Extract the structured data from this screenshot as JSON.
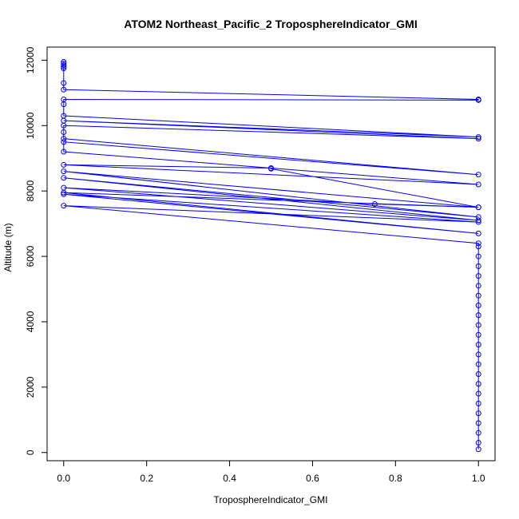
{
  "chart_data": {
    "type": "line",
    "title": "ATOM2 Northeast_Pacific_2 TroposphereIndicator_GMI",
    "xlabel": "TroposphereIndicator_GMI",
    "ylabel": "Altitude (m)",
    "xlim": [
      -0.04,
      1.04
    ],
    "ylim": [
      -250,
      12400
    ],
    "x_ticks": [
      "0.0",
      "0.2",
      "0.4",
      "0.6",
      "0.8",
      "1.0"
    ],
    "y_ticks": [
      "0",
      "2000",
      "4000",
      "6000",
      "8000",
      "10000",
      "12000"
    ],
    "color": "#0000ff",
    "grid": false,
    "series": [
      {
        "points": [
          [
            0,
            11950
          ],
          [
            0,
            11900
          ],
          [
            0,
            11850
          ],
          [
            0,
            11800
          ],
          [
            0,
            11750
          ],
          [
            0,
            11300
          ],
          [
            0,
            11100
          ],
          [
            1,
            10800
          ],
          [
            1,
            10780
          ],
          [
            0,
            10800
          ],
          [
            0,
            10650
          ],
          [
            0,
            10300
          ],
          [
            1,
            9650
          ],
          [
            0,
            10150
          ],
          [
            1,
            9600
          ],
          [
            0,
            10000
          ],
          [
            0,
            9800
          ],
          [
            0,
            9600
          ],
          [
            1,
            8500
          ],
          [
            0,
            9500
          ],
          [
            0,
            9200
          ],
          [
            1,
            8200
          ],
          [
            0,
            8800
          ],
          [
            0.5,
            8700
          ],
          [
            0.5,
            8680
          ],
          [
            1,
            7500
          ],
          [
            0,
            8600
          ],
          [
            1,
            7200
          ],
          [
            0,
            8400
          ],
          [
            1,
            7100
          ],
          [
            0,
            8100
          ],
          [
            0.75,
            7600
          ],
          [
            1,
            7500
          ],
          [
            0,
            7950
          ],
          [
            1,
            6700
          ],
          [
            0,
            7900
          ],
          [
            1,
            7050
          ],
          [
            0,
            7550
          ],
          [
            1,
            6400
          ],
          [
            1,
            6300
          ],
          [
            1,
            6000
          ],
          [
            1,
            5700
          ],
          [
            1,
            5400
          ],
          [
            1,
            5100
          ],
          [
            1,
            4800
          ],
          [
            1,
            4500
          ],
          [
            1,
            4200
          ],
          [
            1,
            3900
          ],
          [
            1,
            3600
          ],
          [
            1,
            3300
          ],
          [
            1,
            3000
          ],
          [
            1,
            2700
          ],
          [
            1,
            2400
          ],
          [
            1,
            2100
          ],
          [
            1,
            1800
          ],
          [
            1,
            1500
          ],
          [
            1,
            1200
          ],
          [
            1,
            900
          ],
          [
            1,
            600
          ],
          [
            1,
            300
          ],
          [
            1,
            100
          ]
        ]
      }
    ]
  }
}
